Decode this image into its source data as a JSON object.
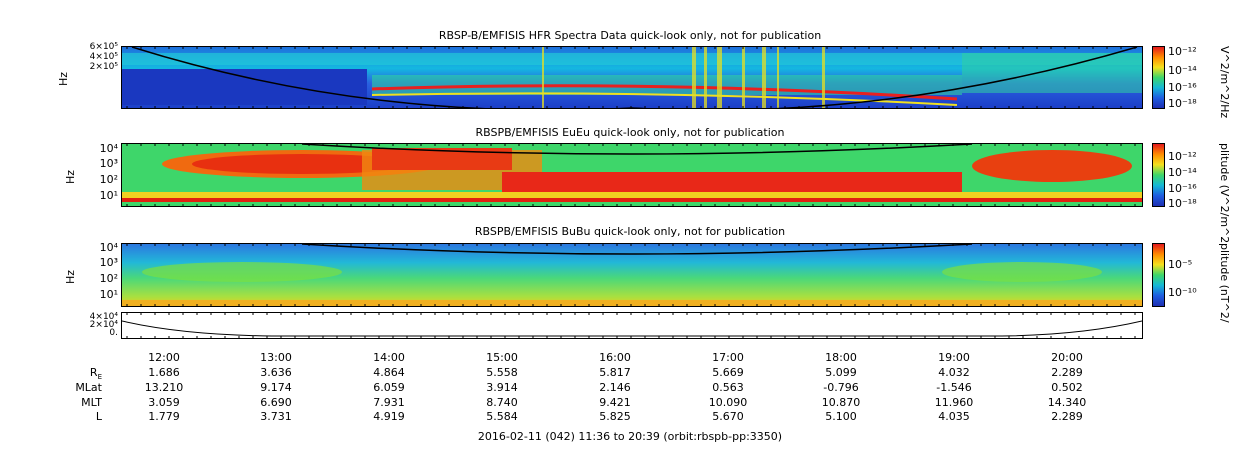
{
  "chart_data": [
    {
      "type": "heatmap",
      "title": "RBSP-B/EMFISIS  HFR Spectra Data quick-look only, not for publication",
      "ylabel": "Hz",
      "y_ticks": [
        "6×10⁵",
        "4×10⁵",
        "2×10⁵"
      ],
      "y_scale": "log",
      "colorbar_label": "V^2/m^2/Hz",
      "colorbar_ticks": [
        "10⁻¹²",
        "10⁻¹⁴",
        "10⁻¹⁶",
        "10⁻¹⁸"
      ]
    },
    {
      "type": "heatmap",
      "title": "RBSPB/EMFISIS  EuEu quick-look only, not for publication",
      "ylabel": "Hz",
      "y_ticks": [
        "10⁴",
        "10³",
        "10²",
        "10¹"
      ],
      "y_scale": "log",
      "colorbar_label": "plitude (V^2/m^2",
      "colorbar_ticks": [
        "10⁻¹²",
        "10⁻¹⁴",
        "10⁻¹⁶",
        "10⁻¹⁸"
      ]
    },
    {
      "type": "heatmap",
      "title": "RBSPB/EMFISIS  BuBu quick-look only, not for publication",
      "ylabel": "Hz",
      "y_ticks": [
        "10⁴",
        "10³",
        "10²",
        "10¹"
      ],
      "y_scale": "log",
      "colorbar_label": "plitude (nT^2/",
      "colorbar_ticks": [
        "10⁻⁵",
        "10⁻¹⁰"
      ]
    },
    {
      "type": "line",
      "y_ticks": [
        "4×10⁴",
        "2×10⁴",
        "0."
      ]
    }
  ],
  "x_ticks": [
    "12:00",
    "13:00",
    "14:00",
    "15:00",
    "16:00",
    "17:00",
    "18:00",
    "19:00",
    "20:00"
  ],
  "ephemeris": {
    "rows": [
      {
        "label": "R",
        "sub": "E",
        "values": [
          "1.686",
          "3.636",
          "4.864",
          "5.558",
          "5.817",
          "5.669",
          "5.099",
          "4.032",
          "2.289"
        ]
      },
      {
        "label": "MLat",
        "sub": "",
        "values": [
          "13.210",
          "9.174",
          "6.059",
          "3.914",
          "2.146",
          "0.563",
          "-0.796",
          "-1.546",
          "0.502"
        ]
      },
      {
        "label": "MLT",
        "sub": "",
        "values": [
          "3.059",
          "6.690",
          "7.931",
          "8.740",
          "9.421",
          "10.090",
          "10.870",
          "11.960",
          "14.340"
        ]
      },
      {
        "label": "L",
        "sub": "",
        "values": [
          "1.779",
          "3.731",
          "4.919",
          "5.584",
          "5.825",
          "5.670",
          "5.100",
          "4.035",
          "2.289"
        ]
      }
    ]
  },
  "footer": "2016-02-11 (042) 11:36 to 20:39 (orbit:rbspb-pp:3350)"
}
